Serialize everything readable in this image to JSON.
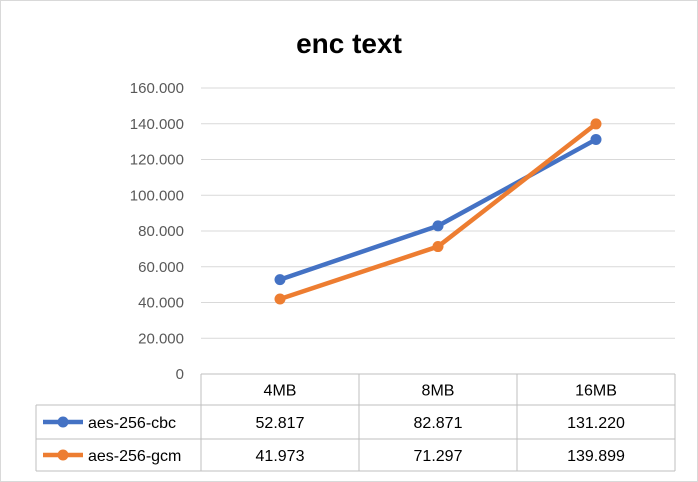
{
  "chart_data": {
    "type": "line",
    "title": "enc text",
    "categories": [
      "4MB",
      "8MB",
      "16MB"
    ],
    "ylim": [
      0,
      160
    ],
    "yticks": [
      0,
      20,
      40,
      60,
      80,
      100,
      120,
      140,
      160
    ],
    "ytick_labels": [
      "0",
      "20.000",
      "40.000",
      "60.000",
      "80.000",
      "100.000",
      "120.000",
      "140.000",
      "160.000"
    ],
    "grid": true,
    "legend": "data-table",
    "series": [
      {
        "name": "aes-256-cbc",
        "color": "#4472C4",
        "values": [
          52.817,
          82.871,
          131.22
        ],
        "labels": [
          "52.817",
          "82.871",
          "131.220"
        ]
      },
      {
        "name": "aes-256-gcm",
        "color": "#ED7D31",
        "values": [
          41.973,
          71.297,
          139.899
        ],
        "labels": [
          "41.973",
          "71.297",
          "139.899"
        ]
      }
    ]
  }
}
